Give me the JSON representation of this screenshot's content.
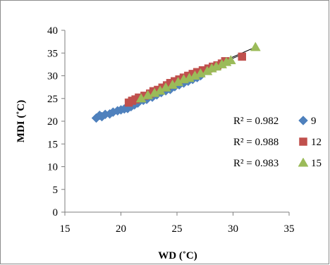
{
  "chart_data": {
    "type": "scatter",
    "xlabel": "WD (˚C)",
    "ylabel": "MDI (˚C)",
    "xlim": [
      15,
      35
    ],
    "ylim": [
      0,
      40
    ],
    "x_ticks": [
      "15",
      "20",
      "25",
      "30",
      "35"
    ],
    "y_ticks": [
      "0",
      "5",
      "10",
      "15",
      "20",
      "25",
      "30",
      "35",
      "40"
    ],
    "grid": false,
    "legend_position": "right",
    "series": [
      {
        "name": "9",
        "marker": "diamond",
        "color": "#4f81bd",
        "r2_label": "R² = 0.982",
        "trend": [
          [
            17.8,
            20.8
          ],
          [
            27.2,
            30.2
          ]
        ],
        "points": [
          [
            17.8,
            20.7
          ],
          [
            18.1,
            21.3
          ],
          [
            18.3,
            21.0
          ],
          [
            18.6,
            21.5
          ],
          [
            19.0,
            21.6
          ],
          [
            19.3,
            22.0
          ],
          [
            19.7,
            22.3
          ],
          [
            20.0,
            22.5
          ],
          [
            20.3,
            22.7
          ],
          [
            20.6,
            22.8
          ],
          [
            20.9,
            23.2
          ],
          [
            21.2,
            23.6
          ],
          [
            21.5,
            24.0
          ],
          [
            22.0,
            24.6
          ],
          [
            22.3,
            24.8
          ],
          [
            22.8,
            25.3
          ],
          [
            23.2,
            25.8
          ],
          [
            23.6,
            26.3
          ],
          [
            24.0,
            26.7
          ],
          [
            24.4,
            27.0
          ],
          [
            24.8,
            27.6
          ],
          [
            25.2,
            28.0
          ],
          [
            25.6,
            28.4
          ],
          [
            26.0,
            28.8
          ],
          [
            26.4,
            29.2
          ],
          [
            26.8,
            29.6
          ],
          [
            27.1,
            30.0
          ]
        ]
      },
      {
        "name": "12",
        "marker": "square",
        "color": "#c0504d",
        "r2_label": "R² = 0.988",
        "trend": [
          [
            20.7,
            24.0
          ],
          [
            30.8,
            34.7
          ]
        ],
        "points": [
          [
            20.7,
            24.1
          ],
          [
            21.0,
            24.5
          ],
          [
            21.3,
            24.8
          ],
          [
            21.6,
            25.2
          ],
          [
            22.1,
            25.6
          ],
          [
            22.6,
            26.1
          ],
          [
            22.9,
            26.6
          ],
          [
            23.3,
            26.9
          ],
          [
            23.7,
            27.4
          ],
          [
            24.1,
            27.9
          ],
          [
            24.4,
            28.4
          ],
          [
            24.8,
            28.8
          ],
          [
            25.2,
            29.2
          ],
          [
            25.6,
            29.6
          ],
          [
            26.0,
            30.0
          ],
          [
            26.4,
            30.4
          ],
          [
            26.8,
            30.8
          ],
          [
            27.3,
            31.2
          ],
          [
            27.8,
            31.6
          ],
          [
            28.2,
            32.0
          ],
          [
            28.6,
            32.3
          ],
          [
            29.0,
            32.7
          ],
          [
            29.3,
            33.2
          ],
          [
            30.8,
            34.2
          ]
        ]
      },
      {
        "name": "15",
        "marker": "triangle",
        "color": "#9bbb59",
        "r2_label": "R² = 0.983",
        "trend": [
          [
            21.5,
            25.0
          ],
          [
            32.0,
            36.3
          ]
        ],
        "points": [
          [
            21.8,
            25.0
          ],
          [
            22.4,
            25.7
          ],
          [
            23.0,
            26.2
          ],
          [
            23.5,
            26.7
          ],
          [
            24.0,
            27.4
          ],
          [
            24.6,
            28.0
          ],
          [
            25.1,
            28.6
          ],
          [
            25.6,
            29.2
          ],
          [
            26.1,
            29.5
          ],
          [
            26.6,
            30.0
          ],
          [
            27.1,
            30.5
          ],
          [
            27.7,
            31.0
          ],
          [
            28.1,
            31.6
          ],
          [
            28.5,
            32.0
          ],
          [
            29.0,
            32.5
          ],
          [
            29.4,
            33.0
          ],
          [
            29.8,
            33.4
          ],
          [
            32.0,
            36.3
          ]
        ]
      }
    ]
  }
}
